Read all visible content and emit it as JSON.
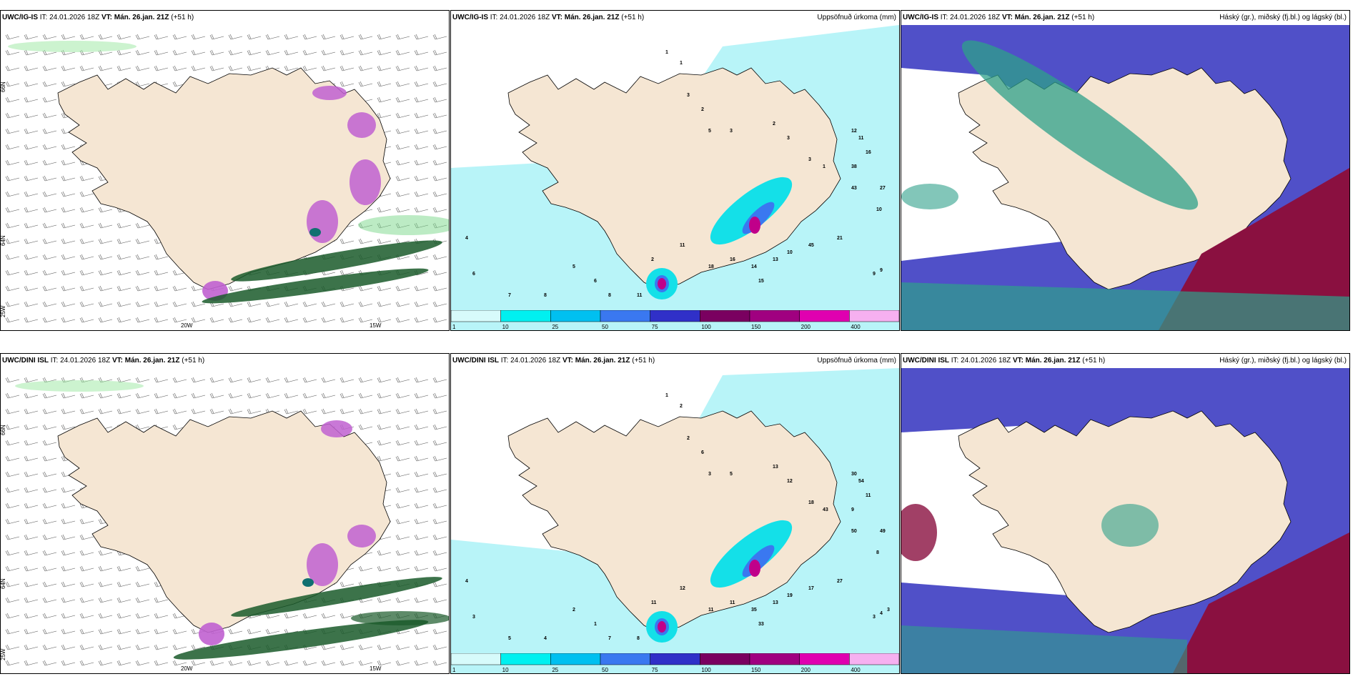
{
  "rows": [
    {
      "model": "UWC/IG-IS",
      "it_label": "IT:",
      "it_value": "24.01.2026 18Z",
      "vt_label": "VT:",
      "vt_value": "Mán. 26.jan. 21Z",
      "lead": "(+51 h)"
    },
    {
      "model": "UWC/DINI ISL",
      "it_label": "IT:",
      "it_value": "24.01.2026 18Z",
      "vt_label": "VT:",
      "vt_value": "Mán. 26.jan. 21Z",
      "lead": "(+51 h)"
    }
  ],
  "titles": {
    "precip": "Uppsöfnuð úrkoma (mm)",
    "cloud": "Háský (gr.), miðský (fj.bl.) og lágský (bl.)"
  },
  "axis": {
    "lat66": "66N",
    "lat64": "64N",
    "lon20": "20W",
    "lon15": "15W",
    "lon25": "25W"
  },
  "legend": {
    "labels": [
      "1",
      "10",
      "25",
      "50",
      "75",
      "100",
      "150",
      "200",
      "400"
    ],
    "colors": [
      "#d7fbfb",
      "#00f0f0",
      "#00c0f0",
      "#3a78f0",
      "#3030c8",
      "#7a0060",
      "#a00080",
      "#e000b0",
      "#f6b0f0"
    ]
  },
  "colors": {
    "land": "#f5e6d3",
    "precip_light": "#b8f4f8",
    "precip_mid": "#14e0e8",
    "precip_high": "#c0008a",
    "wind_barb": "#555555",
    "green_precip": "#1a5a2a",
    "cloud_high": "#2ea08a",
    "cloud_mid": "#5050c8",
    "cloud_low": "#8a1040"
  },
  "precip_numbers_top": [
    "1",
    "1",
    "3",
    "2",
    "5",
    "3",
    "2",
    "3",
    "3",
    "1",
    "12",
    "11",
    "16",
    "38",
    "27",
    "43",
    "10",
    "21",
    "45",
    "10",
    "13",
    "14",
    "15",
    "16",
    "18",
    "11",
    "2",
    "4",
    "6",
    "7",
    "8",
    "8",
    "11",
    "6",
    "5",
    "9",
    "9"
  ],
  "precip_numbers_bottom": [
    "1",
    "2",
    "2",
    "6",
    "3",
    "5",
    "13",
    "12",
    "18",
    "43",
    "30",
    "54",
    "11",
    "9",
    "49",
    "50",
    "8",
    "27",
    "17",
    "19",
    "13",
    "35",
    "33",
    "11",
    "11",
    "12",
    "11",
    "4",
    "3",
    "5",
    "4",
    "7",
    "8",
    "1",
    "2",
    "3",
    "4",
    "3"
  ]
}
